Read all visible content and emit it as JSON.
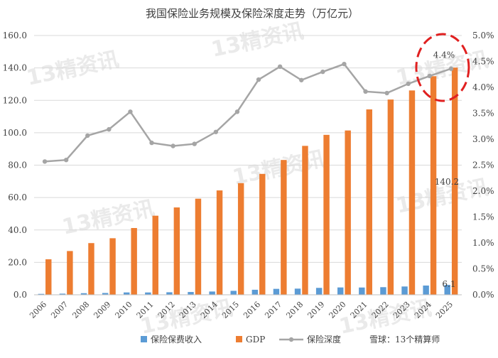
{
  "chart_data": {
    "type": "bar",
    "title": "我国保险业务规模及保险深度走势（万亿元）",
    "categories": [
      "2006",
      "2007",
      "2008",
      "2009",
      "2010",
      "2011",
      "2012",
      "2013",
      "2014",
      "2015",
      "2016",
      "2017",
      "2018",
      "2019",
      "2020",
      "2021",
      "2022",
      "2023",
      "2024",
      "2025"
    ],
    "series": [
      {
        "name": "保险保费收入",
        "type": "bar",
        "axis": "left",
        "color": "#5B9BD5",
        "values": [
          0.56,
          0.7,
          0.98,
          1.11,
          1.45,
          1.43,
          1.55,
          1.72,
          2.02,
          2.43,
          3.1,
          3.66,
          3.8,
          4.26,
          4.53,
          4.49,
          4.7,
          5.12,
          5.7,
          6.1
        ]
      },
      {
        "name": "GDP",
        "type": "bar",
        "axis": "left",
        "color": "#ED7D31",
        "values": [
          21.9,
          27.0,
          31.9,
          34.9,
          41.2,
          48.8,
          53.9,
          59.3,
          64.4,
          68.9,
          74.6,
          83.2,
          91.9,
          98.7,
          101.4,
          114.4,
          120.5,
          126.1,
          134.9,
          140.2
        ]
      },
      {
        "name": "保险深度",
        "type": "line",
        "axis": "right",
        "color": "#A5A5A5",
        "values": [
          2.57,
          2.6,
          3.07,
          3.19,
          3.53,
          2.93,
          2.87,
          2.91,
          3.14,
          3.53,
          4.15,
          4.4,
          4.14,
          4.3,
          4.45,
          3.92,
          3.89,
          4.07,
          4.22,
          4.36
        ]
      }
    ],
    "left_axis": {
      "ylim": [
        0,
        160
      ],
      "ticks": [
        "0.0",
        "20.0",
        "40.0",
        "60.0",
        "80.0",
        "100.0",
        "120.0",
        "140.0",
        "160.0"
      ]
    },
    "right_axis": {
      "ylim": [
        0,
        5
      ],
      "ticks": [
        "0.0%",
        "0.5%",
        "1.0%",
        "1.5%",
        "2.0%",
        "2.5%",
        "3.0%",
        "3.5%",
        "4.0%",
        "4.5%",
        "5.0%"
      ]
    },
    "grid": true,
    "legend_position": "bottom",
    "annotations": [
      {
        "text": "4.4%",
        "series": "保险深度",
        "category": "2025"
      },
      {
        "text": "140.2",
        "series": "GDP",
        "category": "2025"
      },
      {
        "text": "6.1",
        "series": "保险保费收入",
        "category": "2025"
      }
    ],
    "highlight_color": "#E02020"
  },
  "watermark": {
    "text": "13精资讯",
    "footer": "雪球：13个精算师"
  }
}
